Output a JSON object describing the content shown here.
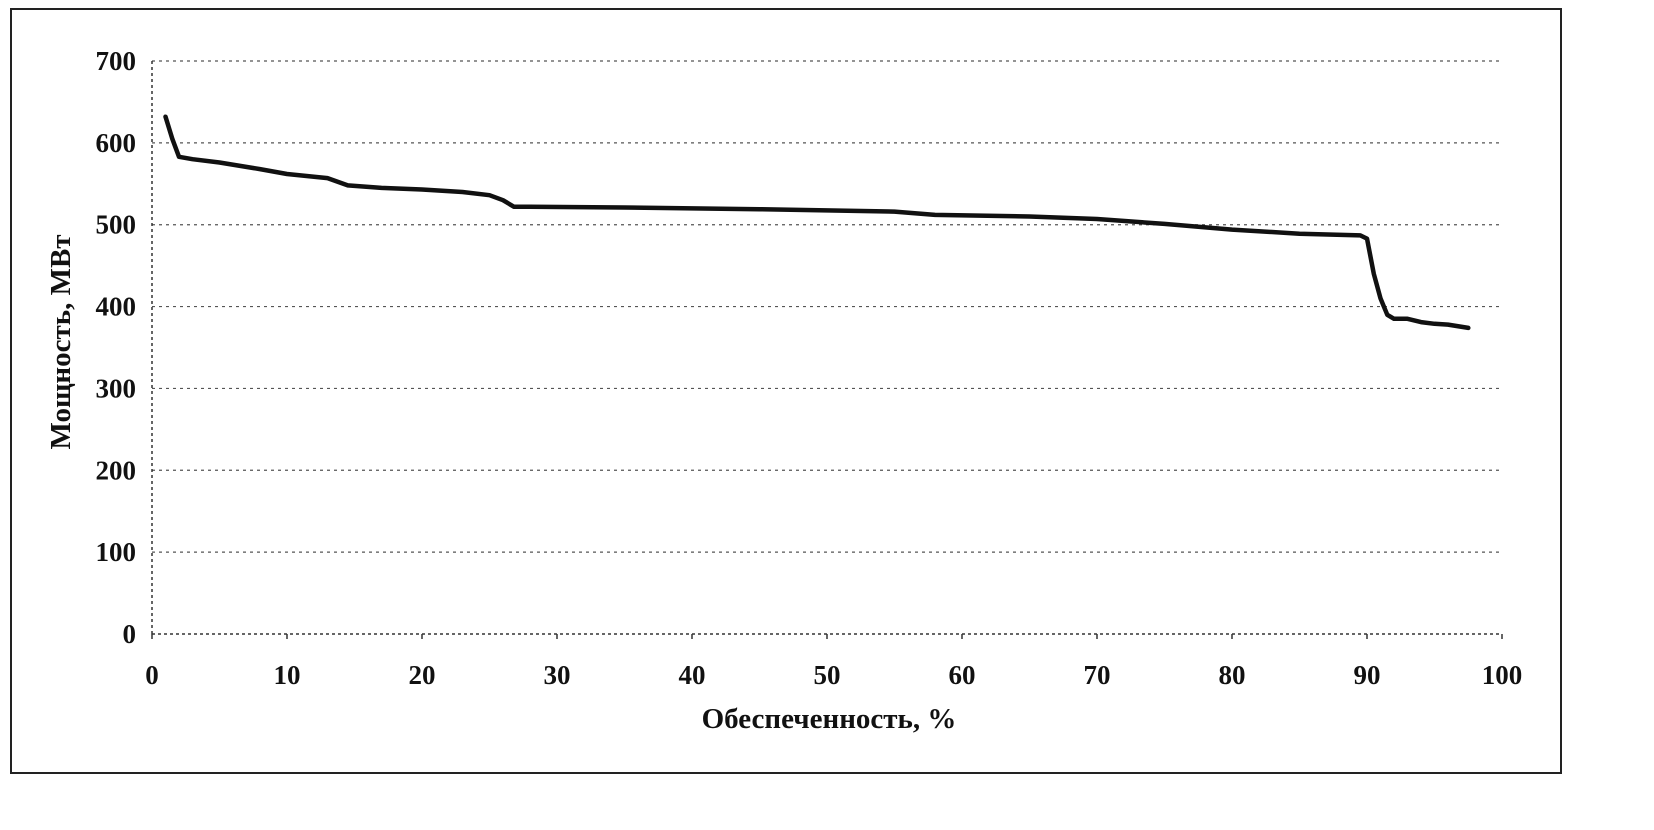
{
  "chart_data": {
    "type": "line",
    "title": "",
    "xlabel": "Обеспеченность, %",
    "ylabel": "Мощность, МВт",
    "xlim": [
      0,
      100
    ],
    "ylim": [
      0,
      700
    ],
    "x_ticks": [
      "0",
      "10",
      "20",
      "30",
      "40",
      "50",
      "60",
      "70",
      "80",
      "90",
      "100"
    ],
    "y_ticks": [
      "0",
      "100",
      "200",
      "300",
      "400",
      "500",
      "600",
      "700"
    ],
    "grid": true,
    "legend": "none",
    "line_color": "#111111",
    "series": [
      {
        "x": [
          1,
          1.5,
          2,
          3,
          5,
          8,
          10,
          13,
          14.5,
          17,
          20,
          23,
          25,
          26,
          26.8,
          28,
          35,
          45,
          55,
          58,
          65,
          70,
          75,
          80,
          85,
          89.5,
          90,
          90.5,
          91,
          91.5,
          92,
          93,
          94,
          95,
          96,
          97.5
        ],
        "y": [
          632,
          605,
          583,
          580,
          576,
          568,
          562,
          557,
          548,
          545,
          543,
          540,
          536,
          530,
          522,
          522,
          521,
          519,
          516,
          512,
          510,
          507,
          501,
          494,
          489,
          487,
          483,
          440,
          410,
          390,
          385,
          385,
          381,
          379,
          378,
          374
        ]
      }
    ]
  }
}
